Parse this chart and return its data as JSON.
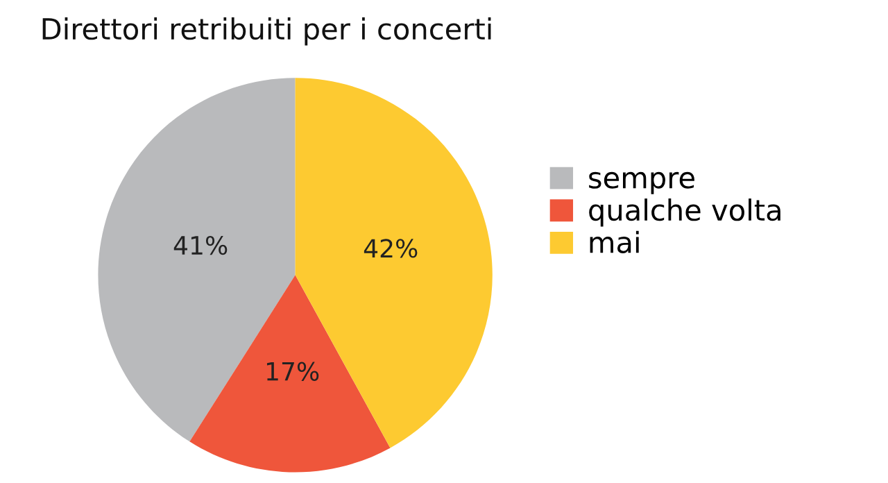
{
  "chart_data": {
    "type": "pie",
    "title": "Direttori retribuiti per i concerti",
    "categories": [
      "sempre",
      "qualche volta",
      "mai"
    ],
    "values": [
      41,
      17,
      42
    ],
    "colors": [
      "#b9babc",
      "#ef563b",
      "#fdca31"
    ],
    "value_labels": [
      "41%",
      "17%",
      "42%"
    ],
    "legend": "right"
  }
}
